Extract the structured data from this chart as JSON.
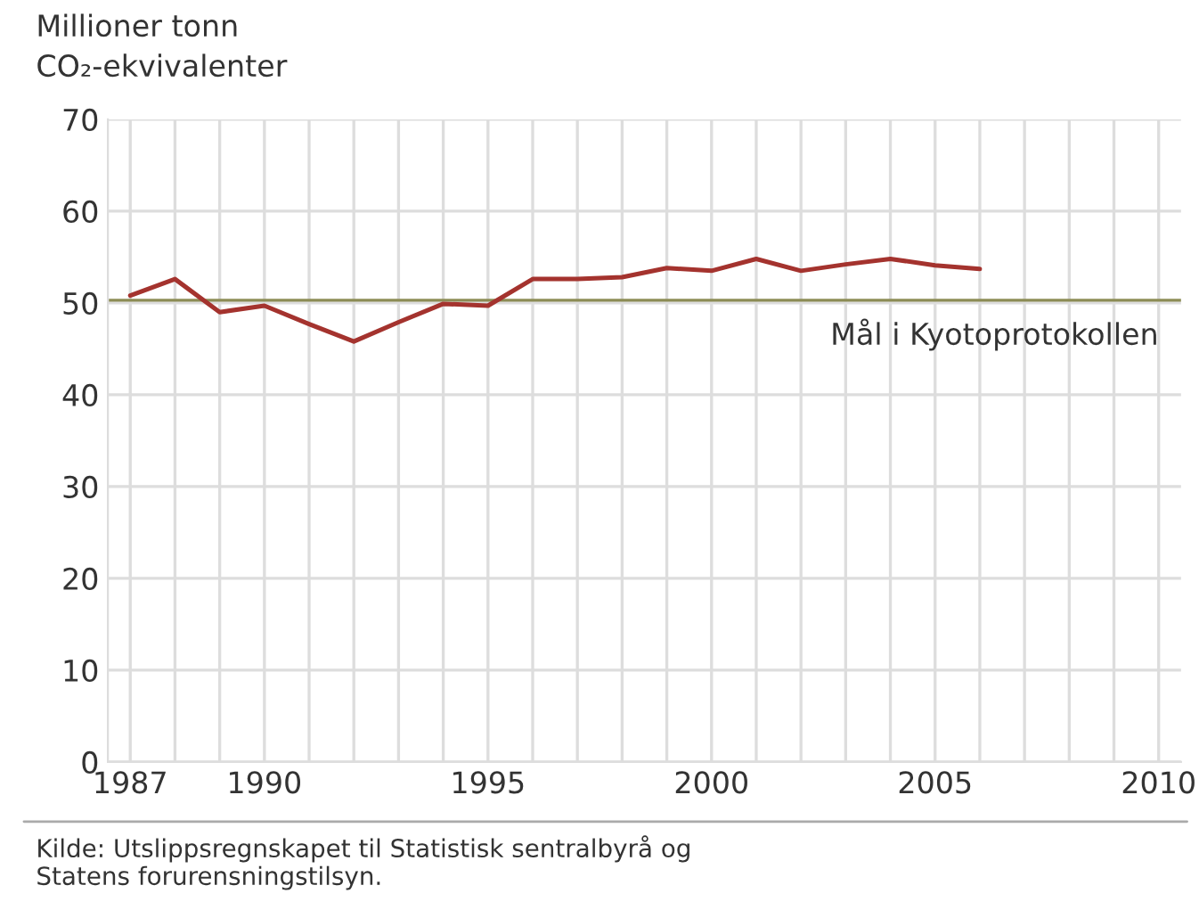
{
  "chart_data": {
    "type": "line",
    "ylabel": "Millioner tonn\nCO₂-ekvivalenter",
    "x": [
      1987,
      1988,
      1989,
      1990,
      1991,
      1992,
      1993,
      1994,
      1995,
      1996,
      1997,
      1998,
      1999,
      2000,
      2001,
      2002,
      2003,
      2004,
      2005,
      2006
    ],
    "series": [
      {
        "color": "#a4332e",
        "values": [
          50.8,
          52.6,
          49.0,
          49.7,
          47.7,
          45.8,
          47.9,
          49.9,
          49.7,
          52.6,
          52.6,
          52.8,
          53.8,
          53.5,
          54.8,
          53.5,
          54.2,
          54.8,
          54.1,
          53.7
        ]
      }
    ],
    "xlim": [
      1986.5,
      2010.5
    ],
    "xticks": [
      1987,
      {
        "value": 1988,
        "label": null
      },
      {
        "value": 1989,
        "label": null
      },
      1990,
      {
        "value": 1991,
        "label": null
      },
      {
        "value": 1992,
        "label": null
      },
      {
        "value": 1993,
        "label": null
      },
      {
        "value": 1994,
        "label": null
      },
      1995,
      {
        "value": 1996,
        "label": null
      },
      {
        "value": 1997,
        "label": null
      },
      {
        "value": 1998,
        "label": null
      },
      {
        "value": 1999,
        "label": null
      },
      2000,
      {
        "value": 2001,
        "label": null
      },
      {
        "value": 2002,
        "label": null
      },
      {
        "value": 2003,
        "label": null
      },
      {
        "value": 2004,
        "label": null
      },
      2005,
      {
        "value": 2006,
        "label": null
      },
      {
        "value": 2007,
        "label": null
      },
      {
        "value": 2008,
        "label": null
      },
      {
        "value": 2009,
        "label": null
      },
      2010
    ],
    "ylim": [
      0,
      70
    ],
    "yticks": [
      0,
      10,
      20,
      30,
      40,
      50,
      60,
      70
    ],
    "grid": true,
    "ref_lines": [
      {
        "axis": "y",
        "value": 50.3,
        "label": "Mål i Kyotoprotokollen",
        "color": "#8c8c55"
      }
    ],
    "annotations": [
      "Kilde: Utslippsregnskapet til Statistisk sentralbyrå og\nStatens forurensningstilsyn."
    ]
  }
}
